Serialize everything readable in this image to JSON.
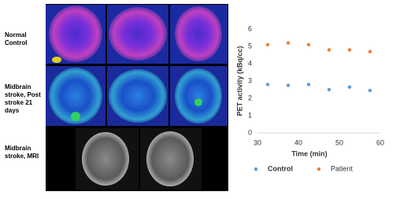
{
  "figure": {
    "row_labels": [
      "Normal Control",
      "Midbrain stroke, Post stroke 21 days",
      "Midbrain stroke, MRI"
    ]
  },
  "chart_data": {
    "type": "scatter",
    "x": [
      32.5,
      37.5,
      42.5,
      47.5,
      52.5,
      57.5
    ],
    "series": [
      {
        "name": "Control",
        "color": "#5b9bd5",
        "values": [
          2.8,
          2.75,
          2.8,
          2.5,
          2.65,
          2.45
        ]
      },
      {
        "name": "Patient",
        "color": "#ed7d31",
        "values": [
          5.1,
          5.2,
          5.1,
          4.8,
          4.8,
          4.7
        ]
      }
    ],
    "xlabel": "Time (min)",
    "ylabel": "PET activity (kBq/cc)",
    "xlim": [
      30,
      60
    ],
    "xticks": [
      30,
      40,
      50,
      60
    ],
    "ylim": [
      0,
      6
    ],
    "yticks": [
      0,
      1,
      2,
      3,
      4,
      5,
      6
    ],
    "legend": "bottom"
  }
}
